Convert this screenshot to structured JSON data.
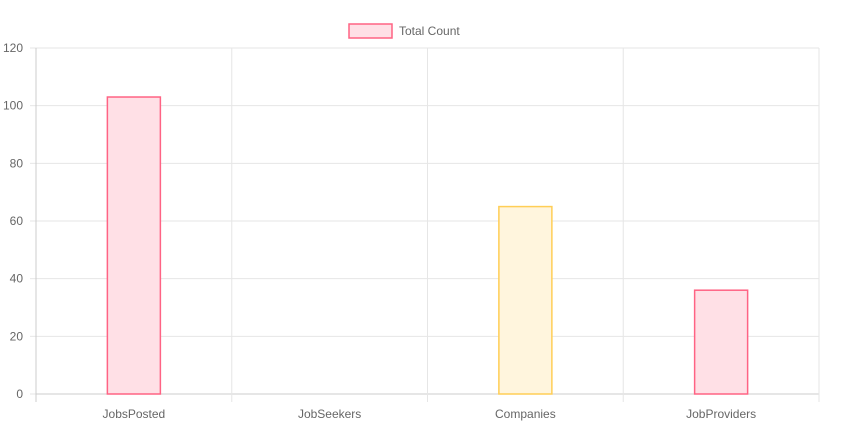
{
  "chart_data": {
    "type": "bar",
    "categories": [
      "JobsPosted",
      "JobSeekers",
      "Companies",
      "JobProviders"
    ],
    "series": [
      {
        "name": "Total Count",
        "values": [
          103,
          0,
          65,
          36
        ]
      }
    ],
    "ylim": [
      0,
      120
    ],
    "yticks": [
      0,
      20,
      40,
      60,
      80,
      100,
      120
    ],
    "grid": true,
    "legend_position": "top-center",
    "colors": {
      "legend_fill": "#ffe0e6",
      "legend_border": "#ff6384",
      "bar_fills": [
        "#ffe0e6",
        "#ffe0e6",
        "#fff5dd",
        "#ffe0e6"
      ],
      "bar_borders": [
        "#ff6384",
        "#ff6384",
        "#ffce56",
        "#ff6384"
      ],
      "grid": "#e6e6e6",
      "axis": "#cccccc",
      "text": "#666666"
    }
  }
}
